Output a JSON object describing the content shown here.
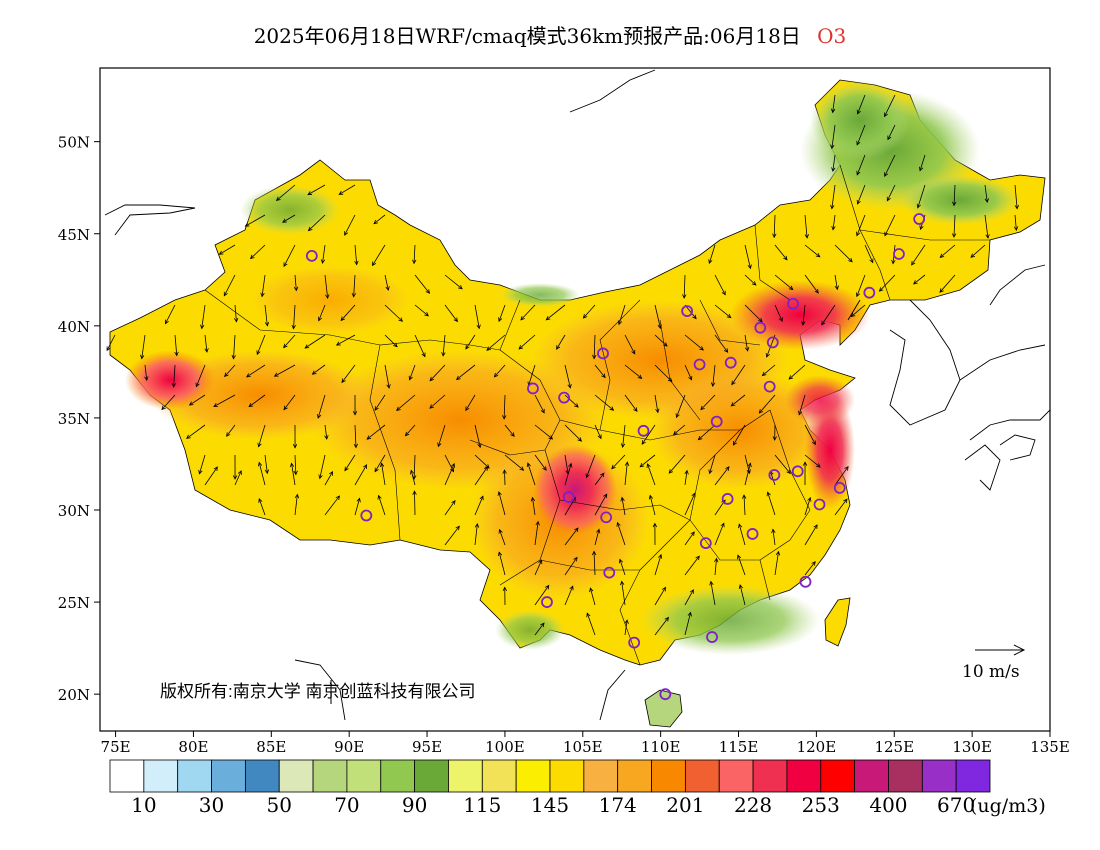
{
  "title": {
    "text": "2025年06月18日WRF/cmaq模式36km预报产品:06月18日",
    "pollutant": "O3"
  },
  "map": {
    "lon_labels": [
      "75E",
      "80E",
      "85E",
      "90E",
      "95E",
      "100E",
      "105E",
      "110E",
      "115E",
      "120E",
      "125E",
      "130E",
      "135E"
    ],
    "lat_labels": [
      "20N",
      "25N",
      "30N",
      "35N",
      "40N",
      "45N",
      "50N"
    ],
    "copyright": "版权所有:南京大学  南京创蓝科技有限公司",
    "wind_reference": "10 m/s"
  },
  "legend": {
    "colors": [
      "#ffffff",
      "#d2eefa",
      "#a0d8f2",
      "#6aaedc",
      "#4288c0",
      "#dce8b8",
      "#b6d67e",
      "#c2e07a",
      "#90c850",
      "#6aa838",
      "#eef46a",
      "#f2e258",
      "#fcee00",
      "#fcdc00",
      "#f8b040",
      "#f8a820",
      "#f88800",
      "#f06030",
      "#fa6464",
      "#f03050",
      "#f00040",
      "#ff0000",
      "#c81878",
      "#a83060",
      "#9830c8",
      "#8028e0"
    ],
    "labels": [
      "10",
      "30",
      "50",
      "70",
      "90",
      "115",
      "145",
      "174",
      "201",
      "228",
      "253",
      "400",
      "670"
    ],
    "unit": "(ug/m3)"
  },
  "stations": [
    {
      "lon": 87.6,
      "lat": 43.8
    },
    {
      "lon": 91.1,
      "lat": 29.7
    },
    {
      "lon": 101.8,
      "lat": 36.6
    },
    {
      "lon": 103.8,
      "lat": 36.1
    },
    {
      "lon": 106.3,
      "lat": 38.5
    },
    {
      "lon": 111.7,
      "lat": 40.8
    },
    {
      "lon": 112.5,
      "lat": 37.9
    },
    {
      "lon": 114.5,
      "lat": 38.0
    },
    {
      "lon": 116.4,
      "lat": 39.9
    },
    {
      "lon": 117.2,
      "lat": 39.1
    },
    {
      "lon": 117.0,
      "lat": 36.7
    },
    {
      "lon": 113.6,
      "lat": 34.8
    },
    {
      "lon": 108.9,
      "lat": 34.3
    },
    {
      "lon": 104.1,
      "lat": 30.7
    },
    {
      "lon": 106.5,
      "lat": 29.6
    },
    {
      "lon": 114.3,
      "lat": 30.6
    },
    {
      "lon": 117.3,
      "lat": 31.9
    },
    {
      "lon": 118.8,
      "lat": 32.1
    },
    {
      "lon": 120.2,
      "lat": 30.3
    },
    {
      "lon": 121.5,
      "lat": 31.2
    },
    {
      "lon": 112.9,
      "lat": 28.2
    },
    {
      "lon": 115.9,
      "lat": 28.7
    },
    {
      "lon": 119.3,
      "lat": 26.1
    },
    {
      "lon": 113.3,
      "lat": 23.1
    },
    {
      "lon": 108.3,
      "lat": 22.8
    },
    {
      "lon": 110.3,
      "lat": 20.0
    },
    {
      "lon": 106.7,
      "lat": 26.6
    },
    {
      "lon": 102.7,
      "lat": 25.0
    },
    {
      "lon": 126.6,
      "lat": 45.8
    },
    {
      "lon": 125.3,
      "lat": 43.9
    },
    {
      "lon": 123.4,
      "lat": 41.8
    },
    {
      "lon": 118.5,
      "lat": 41.2
    }
  ]
}
